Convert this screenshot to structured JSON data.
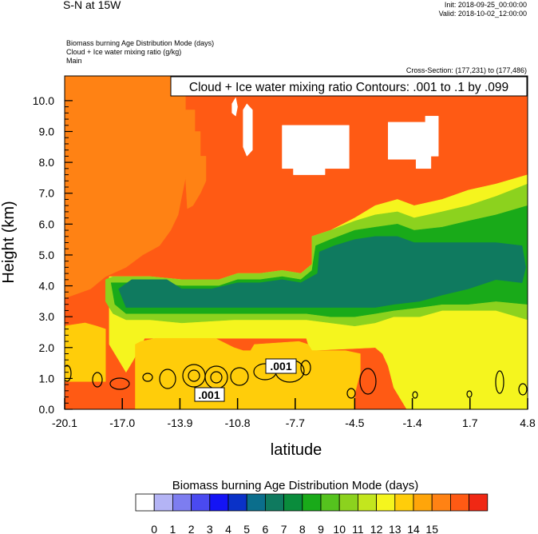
{
  "header": {
    "title": "S-N at 15W",
    "init": "Init: 2018-09-25_00:00:00",
    "valid": "Valid: 2018-10-02_12:00:00",
    "desc_lines": [
      "Biomass burning Age Distribution Mode   (days)",
      "Cloud + Ice water mixing ratio   (g/kg)",
      "Main"
    ],
    "cross_section": "Cross-Section: (177,231) to (177,486)"
  },
  "chart_data": {
    "type": "heatmap",
    "contour_title": "Cloud + Ice water mixing ratio Contours: .001 to .1 by .099",
    "contour_labels": [
      ".001",
      ".001"
    ],
    "xlabel": "latitude",
    "ylabel": "Height (km)",
    "x_tick_labels": [
      "-20.1",
      "-17.0",
      "-13.9",
      "-10.8",
      "-7.7",
      "-4.5",
      "-1.4",
      "1.7",
      "4.8"
    ],
    "x_ticks": [
      -20.1,
      -17.0,
      -13.9,
      -10.8,
      -7.7,
      -4.5,
      -1.4,
      1.7,
      4.8
    ],
    "y_tick_labels": [
      "0.0",
      "1.0",
      "2.0",
      "3.0",
      "4.0",
      "5.0",
      "6.0",
      "7.0",
      "8.0",
      "9.0",
      "10.0"
    ],
    "y_ticks": [
      0,
      1,
      2,
      3,
      4,
      5,
      6,
      7,
      8,
      9,
      10
    ],
    "xlim": [
      -20.1,
      4.8
    ],
    "ylim": [
      0,
      10.8
    ],
    "colorbar": {
      "title": "Biomass burning Age Distribution Mode  (days)",
      "labels": [
        "0",
        "1",
        "2",
        "3",
        "4",
        "5",
        "6",
        "7",
        "8",
        "9",
        "10",
        "11",
        "12",
        "13",
        "14",
        "15"
      ],
      "colors": [
        "#ffffff",
        "#b4b4f5",
        "#7d7df0",
        "#4a4af0",
        "#1414f5",
        "#0a32c8",
        "#0b6e8c",
        "#0f7a5f",
        "#0a8c3c",
        "#19aa19",
        "#55c31e",
        "#8cd21e",
        "#c3e61e",
        "#f5f51e",
        "#ffcd0a",
        "#ffa50a",
        "#ff8214",
        "#ff5a14",
        "#f02814"
      ]
    },
    "regions": [
      {
        "value": 14,
        "color": "#ff5a14",
        "points": [
          [
            -20.1,
            0
          ],
          [
            4.8,
            0
          ],
          [
            4.8,
            10.8
          ],
          [
            -20.1,
            10.8
          ]
        ]
      },
      {
        "value": 13,
        "color": "#ff8214",
        "points": [
          [
            -20.1,
            3.6
          ],
          [
            -18.7,
            3.9
          ],
          [
            -17.9,
            4.3
          ],
          [
            -16.8,
            4.6
          ],
          [
            -15.9,
            5.0
          ],
          [
            -15.0,
            5.3
          ],
          [
            -14.4,
            5.8
          ],
          [
            -14.0,
            6.3
          ],
          [
            -13.8,
            6.9
          ],
          [
            -13.6,
            7.5
          ],
          [
            -13.6,
            10.8
          ],
          [
            -20.1,
            10.8
          ]
        ]
      },
      {
        "value": 13,
        "color": "#ff8214",
        "points": [
          [
            -13.6,
            7.5
          ],
          [
            -13.6,
            9.7
          ],
          [
            -13.1,
            9.7
          ],
          [
            -13.1,
            9.0
          ],
          [
            -12.8,
            9.0
          ],
          [
            -12.8,
            8.2
          ],
          [
            -12.5,
            8.2
          ],
          [
            -12.5,
            7.4
          ],
          [
            -12.8,
            7.0
          ],
          [
            -13.2,
            6.6
          ],
          [
            -13.5,
            6.5
          ]
        ]
      },
      {
        "value": 12,
        "color": "#ffcd0a",
        "points": [
          [
            -20.1,
            2.7
          ],
          [
            -19.0,
            2.8
          ],
          [
            -18.4,
            2.7
          ],
          [
            -17.9,
            2.6
          ],
          [
            -17.9,
            0.9
          ],
          [
            -20.1,
            0.9
          ]
        ]
      },
      {
        "value": 11,
        "color": "#f5f51e",
        "points": [
          [
            -17.7,
            2.1
          ],
          [
            -17.7,
            4.3
          ],
          [
            -15.5,
            4.3
          ],
          [
            -13.8,
            4.2
          ],
          [
            -11.8,
            4.2
          ],
          [
            -10.8,
            4.4
          ],
          [
            -9.6,
            4.4
          ],
          [
            -8.4,
            4.5
          ],
          [
            -7.4,
            4.4
          ],
          [
            -6.8,
            4.7
          ],
          [
            -6.8,
            5.6
          ],
          [
            -5.8,
            5.8
          ],
          [
            -4.5,
            6.2
          ],
          [
            -3.4,
            6.6
          ],
          [
            -2.2,
            6.8
          ],
          [
            -1.3,
            6.6
          ],
          [
            0.2,
            6.8
          ],
          [
            1.6,
            7.1
          ],
          [
            3.1,
            7.3
          ],
          [
            4.8,
            7.6
          ],
          [
            4.8,
            0
          ],
          [
            -1.7,
            0
          ],
          [
            -2.4,
            0.7
          ],
          [
            -2.7,
            1.4
          ],
          [
            -3.0,
            1.8
          ],
          [
            -3.4,
            2.0
          ],
          [
            -6.9,
            1.9
          ],
          [
            -7.1,
            2.3
          ],
          [
            -15.8,
            2.3
          ],
          [
            -16.4,
            1.6
          ],
          [
            -16.8,
            1.2
          ],
          [
            -17.2,
            1.6
          ]
        ]
      },
      {
        "value": 12,
        "color": "#ffcd0a",
        "points": [
          [
            -16.3,
            2.1
          ],
          [
            -16.0,
            2.2
          ],
          [
            -15.2,
            2.3
          ],
          [
            -14.3,
            2.3
          ],
          [
            -12.0,
            2.3
          ],
          [
            -11.0,
            2.0
          ],
          [
            -10.5,
            1.9
          ],
          [
            -10.1,
            1.9
          ],
          [
            -9.9,
            2.1
          ],
          [
            -7.5,
            2.2
          ],
          [
            -7.0,
            2.1
          ],
          [
            -6.8,
            1.9
          ],
          [
            -5.0,
            1.9
          ],
          [
            -4.2,
            1.8
          ],
          [
            -4.2,
            1.2
          ],
          [
            -4.5,
            0.5
          ],
          [
            -4.5,
            0
          ],
          [
            -16.3,
            0
          ]
        ]
      },
      {
        "value": 10,
        "color": "#8cd21e",
        "points": [
          [
            -17.9,
            4.2
          ],
          [
            -17.5,
            4.3
          ],
          [
            -15.5,
            4.3
          ],
          [
            -13.8,
            4.2
          ],
          [
            -11.8,
            4.2
          ],
          [
            -10.8,
            4.4
          ],
          [
            -9.6,
            4.4
          ],
          [
            -8.4,
            4.5
          ],
          [
            -7.4,
            4.4
          ],
          [
            -6.8,
            4.7
          ],
          [
            -6.8,
            5.6
          ],
          [
            -5.8,
            5.8
          ],
          [
            -4.5,
            6.1
          ],
          [
            -3.4,
            6.3
          ],
          [
            -2.2,
            6.4
          ],
          [
            -1.3,
            6.2
          ],
          [
            0.2,
            6.4
          ],
          [
            1.6,
            6.6
          ],
          [
            3.1,
            6.9
          ],
          [
            4.8,
            7.3
          ],
          [
            4.8,
            2.9
          ],
          [
            3.1,
            3.2
          ],
          [
            1.6,
            3.2
          ],
          [
            0.2,
            3.2
          ],
          [
            -1.0,
            3.0
          ],
          [
            -2.4,
            3.0
          ],
          [
            -3.4,
            2.8
          ],
          [
            -4.5,
            2.7
          ],
          [
            -5.8,
            2.8
          ],
          [
            -7.1,
            2.9
          ],
          [
            -8.4,
            2.9
          ],
          [
            -11.0,
            2.9
          ],
          [
            -13.8,
            2.8
          ],
          [
            -15.5,
            2.9
          ],
          [
            -16.8,
            2.9
          ],
          [
            -17.5,
            3.1
          ],
          [
            -17.9,
            3.5
          ]
        ]
      },
      {
        "value": 9,
        "color": "#19aa19",
        "points": [
          [
            -17.6,
            4.1
          ],
          [
            -15.5,
            4.1
          ],
          [
            -13.8,
            4.0
          ],
          [
            -11.8,
            4.0
          ],
          [
            -10.8,
            4.2
          ],
          [
            -9.6,
            4.2
          ],
          [
            -8.4,
            4.3
          ],
          [
            -7.4,
            4.2
          ],
          [
            -6.8,
            4.5
          ],
          [
            -6.6,
            5.3
          ],
          [
            -5.8,
            5.5
          ],
          [
            -4.5,
            5.8
          ],
          [
            -3.4,
            5.9
          ],
          [
            -2.2,
            6.0
          ],
          [
            -1.3,
            5.8
          ],
          [
            0.2,
            5.9
          ],
          [
            1.6,
            6.1
          ],
          [
            3.1,
            6.3
          ],
          [
            4.8,
            6.6
          ],
          [
            4.8,
            3.4
          ],
          [
            3.1,
            3.5
          ],
          [
            1.6,
            3.4
          ],
          [
            0.2,
            3.4
          ],
          [
            -1.0,
            3.3
          ],
          [
            -2.4,
            3.2
          ],
          [
            -3.4,
            3.1
          ],
          [
            -4.5,
            3.0
          ],
          [
            -5.8,
            3.0
          ],
          [
            -7.1,
            3.1
          ],
          [
            -8.4,
            3.1
          ],
          [
            -11.0,
            3.1
          ],
          [
            -13.8,
            3.1
          ],
          [
            -15.5,
            3.1
          ],
          [
            -16.8,
            3.1
          ],
          [
            -17.4,
            3.4
          ]
        ]
      },
      {
        "value": 7,
        "color": "#0f7a5f",
        "points": [
          [
            -17.2,
            3.9
          ],
          [
            -16.5,
            4.2
          ],
          [
            -15.5,
            4.2
          ],
          [
            -14.6,
            4.2
          ],
          [
            -13.8,
            3.9
          ],
          [
            -12.2,
            3.9
          ],
          [
            -10.8,
            4.1
          ],
          [
            -9.6,
            4.1
          ],
          [
            -8.4,
            4.2
          ],
          [
            -7.4,
            4.1
          ],
          [
            -6.5,
            4.4
          ],
          [
            -6.4,
            5.1
          ],
          [
            -5.6,
            5.3
          ],
          [
            -4.5,
            5.5
          ],
          [
            -3.4,
            5.6
          ],
          [
            -2.2,
            5.6
          ],
          [
            -1.3,
            5.4
          ],
          [
            0.2,
            5.4
          ],
          [
            1.6,
            5.4
          ],
          [
            3.1,
            5.4
          ],
          [
            4.5,
            5.3
          ],
          [
            4.7,
            4.6
          ],
          [
            4.5,
            4.1
          ],
          [
            3.1,
            4.2
          ],
          [
            1.6,
            3.9
          ],
          [
            0.2,
            3.7
          ],
          [
            -1.0,
            3.5
          ],
          [
            -2.4,
            3.4
          ],
          [
            -3.4,
            3.3
          ],
          [
            -4.5,
            3.3
          ],
          [
            -5.8,
            3.3
          ],
          [
            -7.1,
            3.3
          ],
          [
            -8.4,
            3.3
          ],
          [
            -11.0,
            3.3
          ],
          [
            -13.8,
            3.3
          ],
          [
            -15.5,
            3.3
          ],
          [
            -16.8,
            3.3
          ]
        ]
      },
      {
        "value": 0,
        "color": "#ffffff",
        "points": [
          [
            -8.4,
            9.2
          ],
          [
            -4.8,
            9.2
          ],
          [
            -4.8,
            7.8
          ],
          [
            -6.1,
            7.8
          ],
          [
            -6.1,
            7.6
          ],
          [
            -7.8,
            7.6
          ],
          [
            -7.8,
            7.8
          ],
          [
            -8.4,
            7.8
          ]
        ]
      },
      {
        "value": 0,
        "color": "#ffffff",
        "points": [
          [
            -2.7,
            9.3
          ],
          [
            -0.7,
            9.3
          ],
          [
            -0.7,
            9.5
          ],
          [
            0.0,
            9.5
          ],
          [
            0.0,
            8.2
          ],
          [
            -0.4,
            8.2
          ],
          [
            -0.4,
            7.8
          ],
          [
            -1.2,
            7.8
          ],
          [
            -1.2,
            8.1
          ],
          [
            -2.7,
            8.1
          ]
        ]
      },
      {
        "value": 0,
        "color": "#ffffff",
        "points": [
          [
            -10.5,
            9.7
          ],
          [
            -10.3,
            9.9
          ],
          [
            -10.0,
            9.7
          ],
          [
            -10.0,
            8.4
          ],
          [
            -10.3,
            8.2
          ],
          [
            -10.5,
            8.5
          ]
        ]
      },
      {
        "value": 0,
        "color": "#ffffff",
        "points": [
          [
            -11.1,
            9.9
          ],
          [
            -10.9,
            10.1
          ],
          [
            -10.8,
            9.8
          ],
          [
            -10.9,
            9.5
          ],
          [
            -11.1,
            9.6
          ]
        ]
      }
    ]
  }
}
